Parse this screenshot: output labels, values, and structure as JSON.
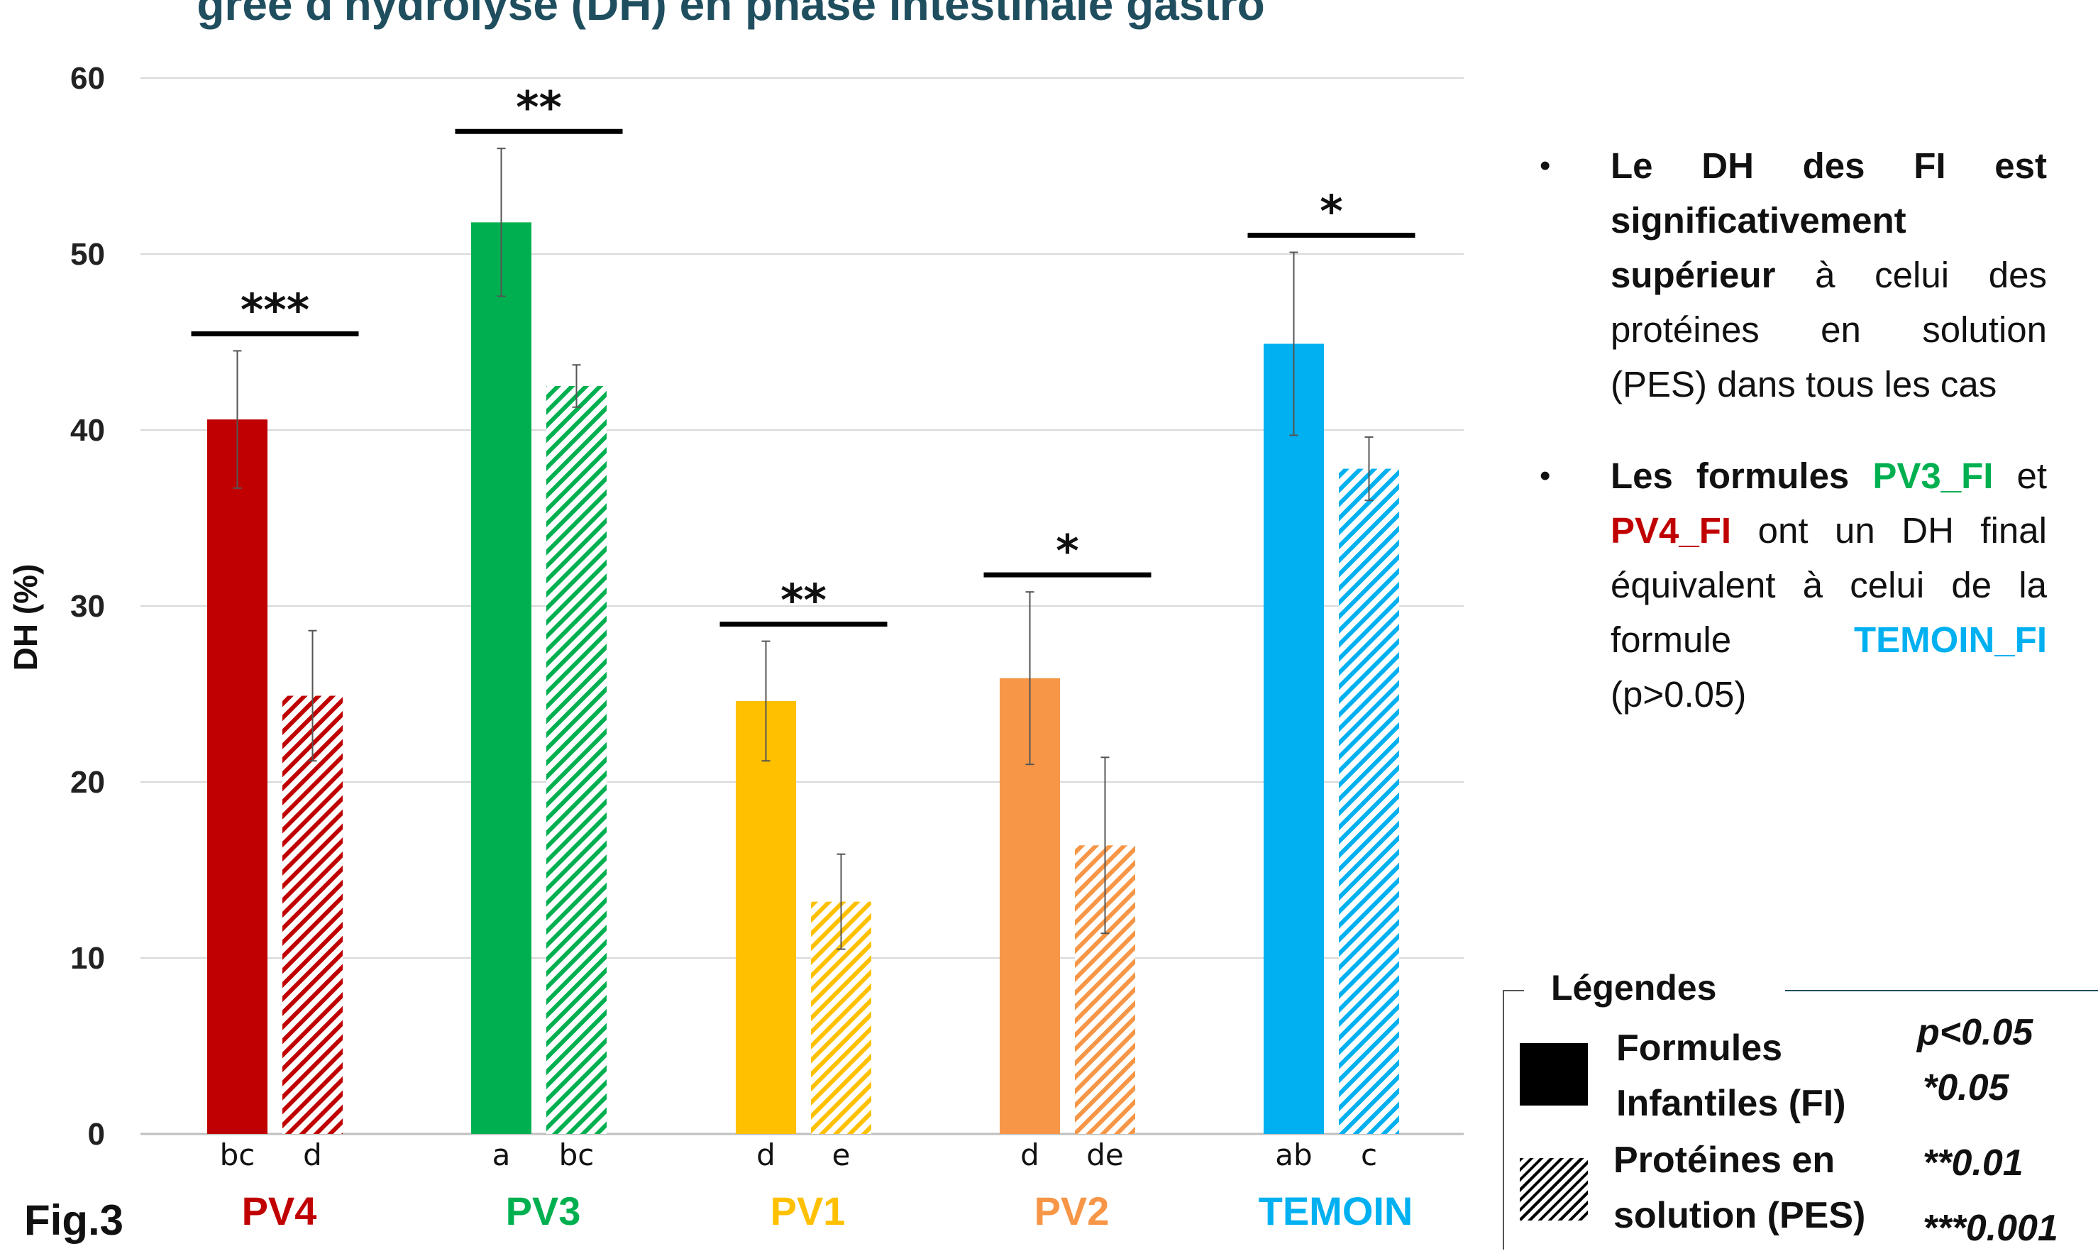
{
  "chart_data": {
    "type": "bar",
    "title": "gree d'hydrolyse (DH) en phase intestinale gastro",
    "ylabel": "DH (%)",
    "ylim": [
      0,
      60
    ],
    "yticks": [
      "0",
      "10",
      "20",
      "30",
      "40",
      "50",
      "60"
    ],
    "grid": true,
    "categories": [
      "PV4",
      "PV3",
      "PV1",
      "PV2",
      "TEMOIN"
    ],
    "category_colors": [
      "#c00000",
      "#00b050",
      "#ffc000",
      "#f79646",
      "#00b0f0"
    ],
    "series": [
      {
        "name": "Formules Infantiles (FI)",
        "pattern": "solid",
        "values": [
          40.6,
          51.8,
          24.6,
          25.9,
          44.9
        ],
        "errors": [
          3.9,
          4.2,
          3.4,
          4.9,
          5.2
        ],
        "letters": [
          "bc",
          "a",
          "d",
          "d",
          "ab"
        ]
      },
      {
        "name": "Protéines en solution (PES)",
        "pattern": "hatched",
        "values": [
          24.9,
          42.5,
          13.2,
          16.4,
          37.8
        ],
        "errors": [
          3.7,
          1.2,
          2.7,
          5.0,
          1.8
        ],
        "letters": [
          "d",
          "bc",
          "e",
          "de",
          "c"
        ]
      }
    ],
    "significance": [
      "***",
      "**",
      "**",
      "*",
      "*"
    ]
  },
  "figure_label": "Fig.3",
  "notes": [
    {
      "parts": [
        {
          "text": "Le DH des FI est significativement supérieur",
          "bold": true
        },
        {
          "text": " à celui des protéines en solution (PES) dans tous les cas",
          "bold": false
        }
      ]
    },
    {
      "parts": [
        {
          "text": "Les formules ",
          "bold": true
        },
        {
          "text": "PV3_FI",
          "bold": true,
          "color": "#00b050"
        },
        {
          "text": " et ",
          "bold": false
        },
        {
          "text": "PV4_FI",
          "bold": true,
          "color": "#c00000"
        },
        {
          "text": " ont un DH final équivalent à celui de la formule ",
          "bold": false
        },
        {
          "text": "TEMOIN_FI",
          "bold": true,
          "color": "#00b0f0"
        },
        {
          "text": " (p>0.05)",
          "bold": false
        }
      ]
    }
  ],
  "legend": {
    "title": "Légendes",
    "fi_label_1": "Formules",
    "fi_label_2": "Infantiles (FI)",
    "pes_label_1": "Protéines en",
    "pes_label_2": "solution (PES)",
    "p_header": "p<0.05",
    "sig_levels": [
      "*0.05",
      "**0.01",
      "***0.001"
    ]
  }
}
